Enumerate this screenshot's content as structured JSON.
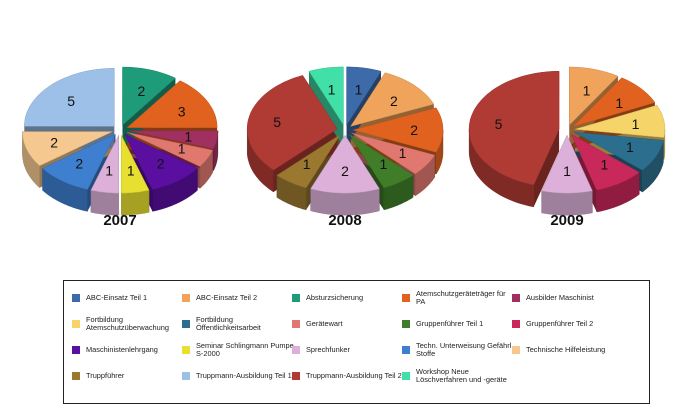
{
  "chart_data": {
    "type": "pie",
    "colors": {
      "ABC-Einsatz Teil 1": "#3d6aa8",
      "ABC-Einsatz Teil 2": "#f0a35a",
      "Absturzsicherung": "#1e9b78",
      "Atemschutzgeräteträger für PA": "#e0621e",
      "Ausbilder Maschinist": "#a03060",
      "Fortbildung Atemschutzüberwachung": "#f5d46a",
      "Fortbildung Öffentlichkeitsarbeit": "#2c6e8e",
      "Gerätewart": "#e07870",
      "Gruppenführer Teil 1": "#3f7d28",
      "Gruppenführer Teil 2": "#c8285a",
      "Maschinistenlehrgang": "#5a0fa0",
      "Seminar Schlingmann Pumpe S-2000": "#e8e030",
      "Sprechfunker": "#dcb0d8",
      "Techn. Unterweisung Gefährl. Stoffe": "#3f7fd0",
      "Technische Hilfeleistung": "#f5c890",
      "Truppführer": "#9a7830",
      "Truppmann-Ausbildung Teil 1": "#9cc0e8",
      "Truppmann-Ausbildung Teil 2": "#b03a34",
      "Workshop Neue Löschverfahren und -geräte": "#40e0a8"
    },
    "charts": [
      {
        "title": "2007",
        "slices": [
          {
            "label": "Absturzsicherung",
            "value": 2
          },
          {
            "label": "Atemschutzgeräteträger für PA",
            "value": 3
          },
          {
            "label": "Ausbilder Maschinist",
            "value": 1
          },
          {
            "label": "Gerätewart",
            "value": 1
          },
          {
            "label": "Maschinistenlehrgang",
            "value": 2
          },
          {
            "label": "Seminar Schlingmann Pumpe S-2000",
            "value": 1
          },
          {
            "label": "Sprechfunker",
            "value": 1
          },
          {
            "label": "Techn. Unterweisung Gefährl. Stoffe",
            "value": 2
          },
          {
            "label": "Technische Hilfeleistung",
            "value": 2
          },
          {
            "label": "Truppmann-Ausbildung Teil 1",
            "value": 5
          }
        ]
      },
      {
        "title": "2008",
        "slices": [
          {
            "label": "ABC-Einsatz Teil 1",
            "value": 1
          },
          {
            "label": "ABC-Einsatz Teil 2",
            "value": 2
          },
          {
            "label": "Atemschutzgeräteträger für PA",
            "value": 2
          },
          {
            "label": "Gerätewart",
            "value": 1
          },
          {
            "label": "Gruppenführer Teil 1",
            "value": 1
          },
          {
            "label": "Sprechfunker",
            "value": 2
          },
          {
            "label": "Truppführer",
            "value": 1
          },
          {
            "label": "Truppmann-Ausbildung Teil 2",
            "value": 5
          },
          {
            "label": "Workshop Neue Löschverfahren und -geräte",
            "value": 1
          }
        ]
      },
      {
        "title": "2009",
        "slices": [
          {
            "label": "ABC-Einsatz Teil 2",
            "value": 1
          },
          {
            "label": "Atemschutzgeräteträger für PA",
            "value": 1
          },
          {
            "label": "Fortbildung Atemschutzüberwachung",
            "value": 1
          },
          {
            "label": "Fortbildung Öffentlichkeitsarbeit",
            "value": 1
          },
          {
            "label": "Gruppenführer Teil 2",
            "value": 1
          },
          {
            "label": "Sprechfunker",
            "value": 1
          },
          {
            "label": "Truppmann-Ausbildung Teil 2",
            "value": 5
          }
        ]
      }
    ],
    "legend": [
      "ABC-Einsatz Teil 1",
      "ABC-Einsatz Teil 2",
      "Absturzsicherung",
      "Atemschutzgeräteträger für PA",
      "Ausbilder Maschinist",
      "Fortbildung Atemschutzüberwachung",
      "Fortbildung Öffentlichkeitsarbeit",
      "Gerätewart",
      "Gruppenführer Teil 1",
      "Gruppenführer Teil 2",
      "Maschinistenlehrgang",
      "Seminar Schlingmann Pumpe S-2000",
      "Sprechfunker",
      "Techn. Unterweisung Gefährl. Stoffe",
      "Technische Hilfeleistung",
      "Truppführer",
      "Truppmann-Ausbildung Teil 1",
      "Truppmann-Ausbildung Teil 2",
      "Workshop Neue Löschverfahren und -geräte"
    ],
    "legend_position": "bottom"
  }
}
